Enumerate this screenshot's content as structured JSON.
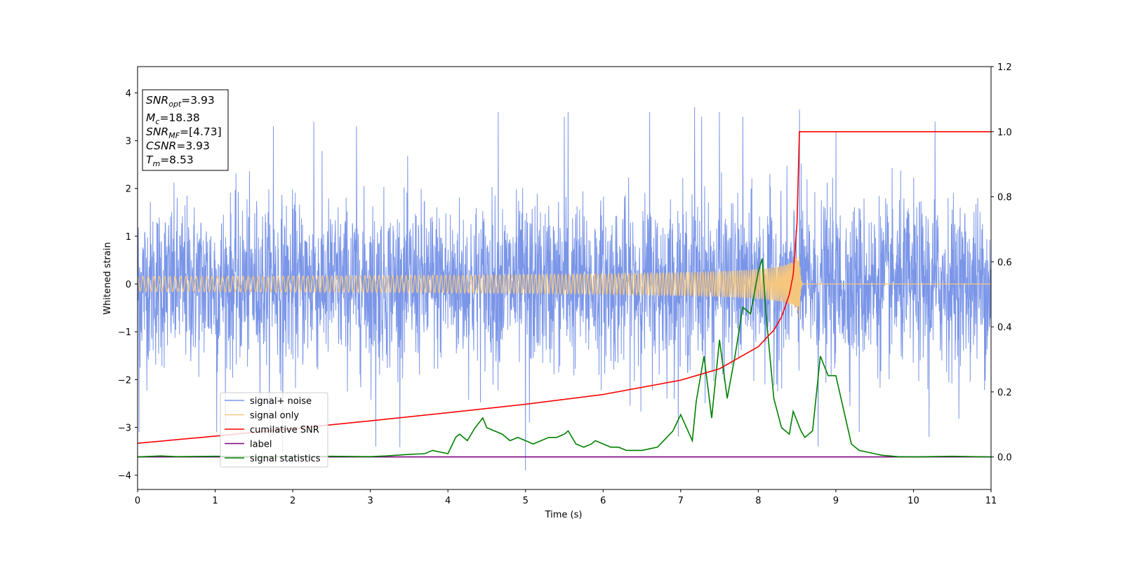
{
  "chart_data": {
    "type": "line",
    "xlabel": "Time (s)",
    "ylabel": "Whitened strain",
    "xlim": [
      0,
      11
    ],
    "ylim_left": [
      -4.3,
      4.55
    ],
    "ylim_right": [
      -0.1,
      1.2
    ],
    "xticks": [
      "0",
      "1",
      "2",
      "3",
      "4",
      "5",
      "6",
      "7",
      "8",
      "9",
      "10",
      "11"
    ],
    "yticks_left": [
      "−4",
      "−3",
      "−2",
      "−1",
      "0",
      "1",
      "2",
      "3",
      "4"
    ],
    "yticks_right": [
      "0.0",
      "0.2",
      "0.4",
      "0.6",
      "0.8",
      "1.0",
      "1.2"
    ],
    "info_box": {
      "snr_opt": "=3.93",
      "mc": "=18.38",
      "snr_mf": "=[4.73]",
      "csnr": "=3.93",
      "tm": "=8.53"
    },
    "legend": {
      "placement": "lower-left",
      "entries": [
        "signal+ noise",
        "signal only",
        "cumilative SNR",
        "label",
        "signal statistics"
      ]
    },
    "colors": {
      "noise": "#7b96e8",
      "signal": "#f5c77e",
      "csnr": "#ff0000",
      "label": "#800080",
      "stats": "#008000"
    },
    "series": [
      {
        "name": "signal+ noise",
        "axis": "left",
        "description_values": "whitened noise, approximately ±2 typical, peaks to ±3.7",
        "peaks": [
          [
            1.75,
            3.3
          ],
          [
            1.87,
            3.3
          ],
          [
            1.87,
            -3.5
          ],
          [
            2.27,
            3.4
          ],
          [
            2.82,
            3.3
          ],
          [
            3.07,
            -3.4
          ],
          [
            4.65,
            3.6
          ],
          [
            5.0,
            -3.9
          ],
          [
            5.05,
            -2.9
          ],
          [
            5.5,
            3.5
          ],
          [
            5.55,
            3.6
          ],
          [
            6.6,
            3.6
          ],
          [
            7.18,
            3.7
          ],
          [
            7.27,
            3.5
          ],
          [
            7.5,
            3.6
          ],
          [
            7.8,
            3.5
          ],
          [
            8.53,
            3.65
          ],
          [
            8.77,
            -3.4
          ],
          [
            9.0,
            3.2
          ],
          [
            10.28,
            3.4
          ],
          [
            0.02,
            -3.1
          ],
          [
            1.02,
            -3.1
          ],
          [
            9.3,
            -3.1
          ],
          [
            10.2,
            -3.2
          ]
        ]
      },
      {
        "name": "signal only",
        "axis": "left",
        "chirp": {
          "end_time": 8.53,
          "peak_amplitude": 0.72
        }
      },
      {
        "name": "cumilative SNR",
        "axis": "right",
        "x": [
          0,
          1,
          2,
          3,
          4,
          5,
          6,
          7,
          7.5,
          8,
          8.2,
          8.3,
          8.4,
          8.45,
          8.5,
          8.53,
          8.56,
          11
        ],
        "y": [
          0.042,
          0.064,
          0.087,
          0.111,
          0.136,
          0.162,
          0.192,
          0.236,
          0.271,
          0.339,
          0.39,
          0.43,
          0.5,
          0.56,
          0.72,
          1.0,
          1.0,
          1.0
        ]
      },
      {
        "name": "label",
        "axis": "right",
        "x": [
          0,
          11
        ],
        "y": [
          0,
          0
        ]
      },
      {
        "name": "signal statistics",
        "axis": "right",
        "x": [
          0,
          0.3,
          0.5,
          1.0,
          1.5,
          2.0,
          2.5,
          3.0,
          3.2,
          3.5,
          3.7,
          3.8,
          4.0,
          4.1,
          4.15,
          4.25,
          4.35,
          4.45,
          4.5,
          4.6,
          4.7,
          4.8,
          4.9,
          5.0,
          5.1,
          5.3,
          5.4,
          5.5,
          5.55,
          5.65,
          5.75,
          5.85,
          5.9,
          6.0,
          6.1,
          6.2,
          6.3,
          6.5,
          6.7,
          6.9,
          7.0,
          7.15,
          7.2,
          7.3,
          7.4,
          7.5,
          7.6,
          7.7,
          7.8,
          7.9,
          8.0,
          8.05,
          8.1,
          8.2,
          8.3,
          8.4,
          8.45,
          8.55,
          8.6,
          8.7,
          8.8,
          8.9,
          9.0,
          9.2,
          9.3,
          9.5,
          9.6,
          9.8,
          10.0,
          10.5,
          11
        ],
        "y": [
          0.0,
          0.003,
          0.001,
          0.002,
          0.001,
          0.001,
          0.002,
          0.001,
          0.003,
          0.008,
          0.01,
          0.02,
          0.01,
          0.06,
          0.07,
          0.05,
          0.09,
          0.12,
          0.09,
          0.08,
          0.07,
          0.05,
          0.06,
          0.05,
          0.04,
          0.06,
          0.06,
          0.07,
          0.08,
          0.04,
          0.03,
          0.04,
          0.05,
          0.04,
          0.03,
          0.03,
          0.02,
          0.02,
          0.03,
          0.08,
          0.13,
          0.05,
          0.17,
          0.31,
          0.12,
          0.36,
          0.18,
          0.31,
          0.46,
          0.44,
          0.57,
          0.61,
          0.44,
          0.18,
          0.09,
          0.07,
          0.14,
          0.08,
          0.06,
          0.08,
          0.31,
          0.25,
          0.25,
          0.04,
          0.02,
          0.01,
          0.005,
          0.001,
          0.0,
          0.002,
          0.0
        ]
      }
    ]
  }
}
